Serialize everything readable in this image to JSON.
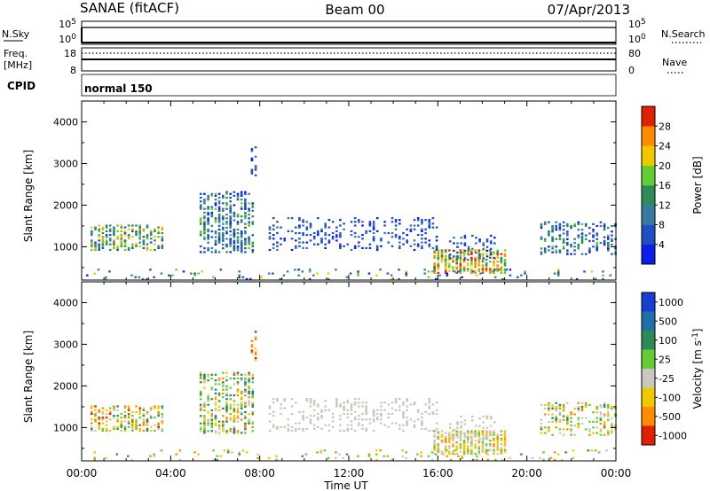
{
  "header": {
    "station": "SANAE (fitACF)",
    "beam": "Beam 00",
    "date": "07/Apr/2013"
  },
  "strips": {
    "nsky_label": "N.Sky",
    "nsky_ticks": [
      "10^5",
      "10^0"
    ],
    "nsearch_label": "N.Search",
    "nsearch_ticks": [
      "10^5",
      "10^0"
    ],
    "freq_label": "Freq.",
    "freq_unit": "[MHz]",
    "freq_ticks": [
      "18",
      "8"
    ],
    "nave_label": "Nave",
    "nave_ticks": [
      "80",
      "0"
    ],
    "cpid_label": "CPID",
    "cpid_value": "normal 150"
  },
  "chart_data": [
    {
      "type": "heatmap",
      "panel": "power",
      "ylabel": "Slant Range [km]",
      "xlabel": "",
      "y_ticks": [
        1000,
        2000,
        3000,
        4000
      ],
      "ylim": [
        200,
        4500
      ],
      "x_ticks": [
        "00:00",
        "04:00",
        "08:00",
        "12:00",
        "16:00",
        "20:00",
        "00:00"
      ],
      "xlim_hours": [
        0,
        24
      ],
      "colorbar": {
        "label": "Power [dB]",
        "ticks": [
          "4",
          "8",
          "12",
          "16",
          "20",
          "24",
          "28"
        ],
        "colors": [
          "#0a20e6",
          "#2050c0",
          "#3a7aa0",
          "#2e8b57",
          "#66cc33",
          "#f0c800",
          "#ff8c00",
          "#e02000"
        ]
      },
      "clusters": [
        {
          "t": [
            0.4,
            3.6
          ],
          "r": [
            900,
            1500
          ],
          "level": [
            1,
            6
          ],
          "density": 0.55
        },
        {
          "t": [
            5.3,
            7.8
          ],
          "r": [
            850,
            2300
          ],
          "level": [
            0,
            4
          ],
          "density": 0.5
        },
        {
          "t": [
            7.6,
            7.9
          ],
          "r": [
            2600,
            3400
          ],
          "level": [
            0,
            2
          ],
          "density": 0.3
        },
        {
          "t": [
            8.4,
            16.0
          ],
          "r": [
            900,
            1700
          ],
          "level": [
            0,
            2
          ],
          "density": 0.28
        },
        {
          "t": [
            15.8,
            19.0
          ],
          "r": [
            350,
            900
          ],
          "level": [
            3,
            7
          ],
          "density": 0.75
        },
        {
          "t": [
            16.5,
            18.6
          ],
          "r": [
            700,
            1250
          ],
          "level": [
            0,
            2
          ],
          "density": 0.35
        },
        {
          "t": [
            20.6,
            24.0
          ],
          "r": [
            800,
            1600
          ],
          "level": [
            0,
            4
          ],
          "density": 0.4
        },
        {
          "t": [
            0.2,
            23.8
          ],
          "r": [
            200,
            450
          ],
          "level": [
            0,
            5
          ],
          "density": 0.12
        }
      ]
    },
    {
      "type": "heatmap",
      "panel": "velocity",
      "ylabel": "Slant Range [km]",
      "xlabel": "Time UT",
      "y_ticks": [
        1000,
        2000,
        3000,
        4000
      ],
      "ylim": [
        200,
        4500
      ],
      "x_ticks": [
        "00:00",
        "04:00",
        "08:00",
        "12:00",
        "16:00",
        "20:00",
        "00:00"
      ],
      "xlim_hours": [
        0,
        24
      ],
      "colorbar": {
        "label": "Velocity [m s^-1]",
        "ticks": [
          "1000",
          "500",
          "100",
          "25",
          "-25",
          "-100",
          "-500",
          "-1000"
        ],
        "colors": [
          "#1a3fd0",
          "#2070a8",
          "#2e8b57",
          "#66cc33",
          "#c8c8c0",
          "#f0c800",
          "#ff8c00",
          "#e02000"
        ]
      },
      "clusters": [
        {
          "t": [
            0.4,
            3.6
          ],
          "r": [
            900,
            1500
          ],
          "level": [
            2,
            7
          ],
          "density": 0.55
        },
        {
          "t": [
            5.3,
            7.8
          ],
          "r": [
            850,
            2300
          ],
          "level": [
            1,
            6
          ],
          "density": 0.5
        },
        {
          "t": [
            7.6,
            7.9
          ],
          "r": [
            2600,
            3400
          ],
          "level": [
            5,
            7
          ],
          "density": 0.3
        },
        {
          "t": [
            8.4,
            16.0
          ],
          "r": [
            900,
            1700
          ],
          "level": [
            4,
            4
          ],
          "density": 0.28
        },
        {
          "t": [
            15.8,
            19.0
          ],
          "r": [
            350,
            900
          ],
          "level": [
            3,
            6
          ],
          "density": 0.75
        },
        {
          "t": [
            16.5,
            18.6
          ],
          "r": [
            700,
            1250
          ],
          "level": [
            4,
            4
          ],
          "density": 0.35
        },
        {
          "t": [
            20.6,
            24.0
          ],
          "r": [
            800,
            1600
          ],
          "level": [
            2,
            6
          ],
          "density": 0.4
        },
        {
          "t": [
            0.2,
            23.8
          ],
          "r": [
            200,
            450
          ],
          "level": [
            2,
            6
          ],
          "density": 0.12
        }
      ]
    }
  ]
}
